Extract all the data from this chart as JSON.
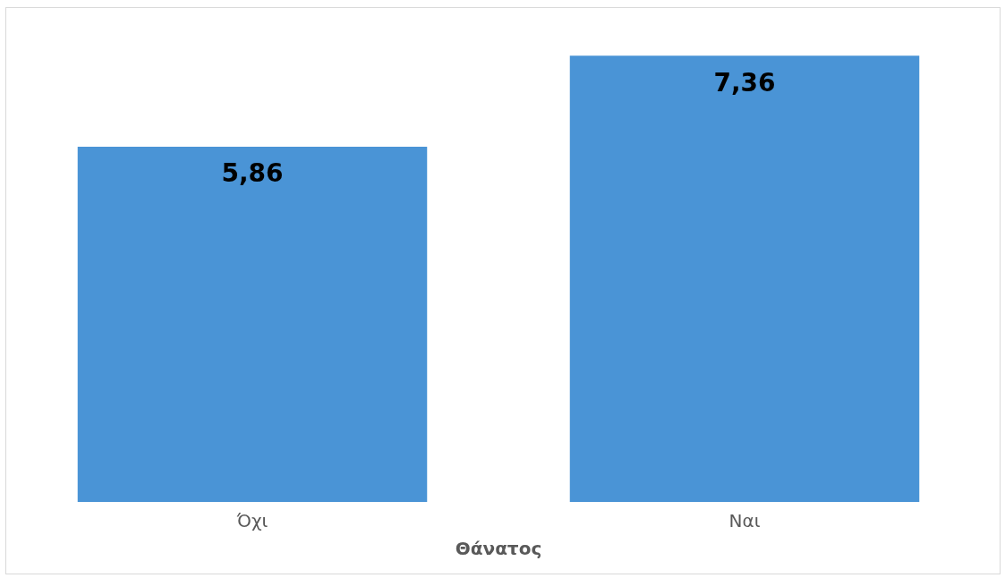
{
  "chart_data": {
    "type": "bar",
    "xlabel": "Θάνατος",
    "categories": [
      "Όχι",
      "Ναι"
    ],
    "series": [
      {
        "color": "#4a94d6",
        "values": [
          5.86,
          7.36
        ],
        "value_labels": [
          "5,86",
          "7,36"
        ]
      }
    ]
  }
}
